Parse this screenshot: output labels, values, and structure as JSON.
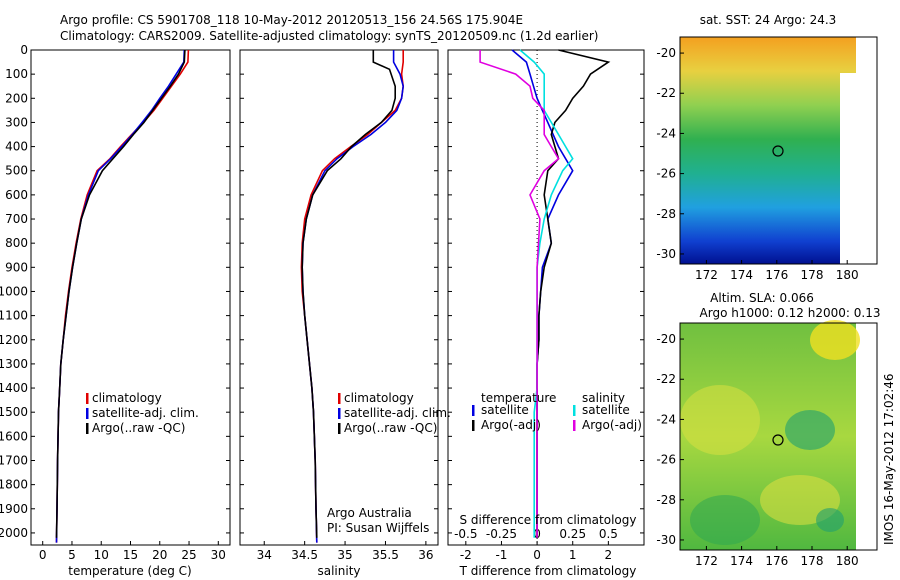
{
  "header": {
    "line1": "Argo profile: CS 5901708_118 10-May-2012 20120513_156 24.56S 175.904E",
    "line2": "Climatology: CARS2009. Satellite-adjusted climatology: synTS_20120509.nc (1.2d earlier)"
  },
  "depth_ticks": [
    "0",
    "100",
    "200",
    "300",
    "400",
    "500",
    "600",
    "700",
    "800",
    "900",
    "1000",
    "1100",
    "1200",
    "1300",
    "1400",
    "1500",
    "1600",
    "1700",
    "1800",
    "1900",
    "2000"
  ],
  "colors": {
    "climatology": "#e00000",
    "satellite": "#0000e0",
    "argo": "#000000",
    "s_satellite": "#00e0e0",
    "s_argo": "#e000e0"
  },
  "chart_data": [
    {
      "type": "line",
      "id": "temperature",
      "xlabel": "temperature (deg C)",
      "xticks": [
        "0",
        "5",
        "10",
        "15",
        "20",
        "25",
        "30"
      ],
      "xlim": [
        -2,
        32
      ],
      "ylim": [
        0,
        2050
      ],
      "legend": [
        "climatology",
        "satellite-adj. clim.",
        "Argo(..raw -QC)"
      ],
      "series": [
        {
          "name": "climatology",
          "color": "#e00000",
          "x": [
            24.9,
            24.8,
            23.5,
            22,
            20.5,
            19,
            17.2,
            15.2,
            13.3,
            11.5,
            9.3,
            7.6,
            6.5,
            5.7,
            5.0,
            4.4,
            3.9,
            3.5,
            3.1,
            2.9,
            2.7,
            2.55,
            2.45,
            2.35
          ],
          "y": [
            0,
            50,
            100,
            150,
            200,
            250,
            300,
            350,
            400,
            450,
            500,
            600,
            700,
            800,
            900,
            1000,
            1100,
            1200,
            1300,
            1400,
            1500,
            1700,
            1900,
            2040
          ]
        },
        {
          "name": "satellite-adj. clim.",
          "color": "#0000e0",
          "x": [
            24.2,
            24.1,
            22.8,
            21.5,
            20,
            18.6,
            17.0,
            15.3,
            13.5,
            11.6,
            9.5,
            7.8,
            6.6,
            5.8,
            5.1,
            4.5,
            4.0,
            3.5,
            3.1,
            2.9,
            2.7,
            2.55,
            2.45,
            2.35
          ],
          "y": [
            0,
            50,
            100,
            150,
            200,
            250,
            300,
            350,
            400,
            450,
            500,
            600,
            700,
            800,
            900,
            1000,
            1100,
            1200,
            1300,
            1400,
            1500,
            1700,
            1900,
            2040
          ]
        },
        {
          "name": "Argo(..raw -QC)",
          "color": "#000000",
          "x": [
            24.3,
            24.2,
            23.2,
            21.8,
            20.3,
            18.8,
            17.3,
            15.5,
            13.8,
            12.0,
            10.2,
            8.0,
            6.6,
            5.8,
            5.1,
            4.5,
            4.0,
            3.5,
            3.1,
            2.9,
            2.7,
            2.55,
            2.45,
            2.35
          ],
          "y": [
            0,
            50,
            100,
            150,
            200,
            250,
            300,
            350,
            400,
            450,
            500,
            600,
            700,
            800,
            900,
            1000,
            1100,
            1200,
            1300,
            1400,
            1500,
            1700,
            1900,
            2020
          ]
        }
      ]
    },
    {
      "type": "line",
      "id": "salinity",
      "xlabel": "salinity",
      "xticks": [
        "34",
        "34.5",
        "35",
        "35.5",
        "36"
      ],
      "xlim": [
        33.7,
        36.15
      ],
      "ylim": [
        0,
        2050
      ],
      "legend": [
        "climatology",
        "satellite-adj. clim.",
        "Argo(..raw -QC)"
      ],
      "note1": "Argo Australia",
      "note2": "PI: Susan Wijffels",
      "series": [
        {
          "name": "climatology",
          "color": "#e00000",
          "x": [
            35.72,
            35.72,
            35.7,
            35.72,
            35.7,
            35.62,
            35.45,
            35.28,
            35.07,
            34.87,
            34.72,
            34.58,
            34.5,
            34.47,
            34.46,
            34.47,
            34.5,
            34.53,
            34.56,
            34.59,
            34.61,
            34.63,
            34.64,
            34.65
          ],
          "y": [
            0,
            50,
            100,
            150,
            200,
            250,
            300,
            350,
            400,
            450,
            500,
            600,
            700,
            800,
            900,
            1000,
            1100,
            1200,
            1300,
            1400,
            1500,
            1700,
            1900,
            2040
          ]
        },
        {
          "name": "satellite-adj. clim.",
          "color": "#0000e0",
          "x": [
            35.6,
            35.6,
            35.68,
            35.72,
            35.7,
            35.64,
            35.5,
            35.32,
            35.1,
            34.9,
            34.75,
            34.6,
            34.52,
            34.48,
            34.47,
            34.48,
            34.5,
            34.53,
            34.56,
            34.59,
            34.61,
            34.63,
            34.64,
            34.65
          ],
          "y": [
            0,
            50,
            100,
            150,
            200,
            250,
            300,
            350,
            400,
            450,
            500,
            600,
            700,
            800,
            900,
            1000,
            1100,
            1200,
            1300,
            1400,
            1500,
            1700,
            1900,
            2040
          ]
        },
        {
          "name": "Argo(..raw -QC)",
          "color": "#000000",
          "x": [
            35.35,
            35.35,
            35.55,
            35.62,
            35.62,
            35.58,
            35.45,
            35.25,
            35.08,
            34.95,
            34.78,
            34.6,
            34.52,
            34.48,
            34.47,
            34.48,
            34.5,
            34.53,
            34.56,
            34.59,
            34.61,
            34.63,
            34.64,
            34.65
          ],
          "y": [
            0,
            50,
            80,
            150,
            200,
            250,
            300,
            350,
            400,
            450,
            500,
            600,
            700,
            800,
            900,
            1000,
            1100,
            1200,
            1300,
            1400,
            1500,
            1700,
            1900,
            2020
          ]
        }
      ]
    },
    {
      "type": "line",
      "id": "difference",
      "xlabel": "T difference from climatology",
      "xlabel_top": "S difference from climatology",
      "xticks": [
        "-2",
        "-1",
        "0",
        "1",
        "2"
      ],
      "xticks_top": [
        "-0.5",
        "-0.25",
        "0",
        "0.25",
        "0.5"
      ],
      "xlim": [
        -2.5,
        3.0
      ],
      "ylim": [
        0,
        2050
      ],
      "legend_left_title": "temperature",
      "legend_right_title": "salinity",
      "legend_left": [
        "satellite",
        "Argo(-adj)"
      ],
      "legend_right": [
        "satellite",
        "Argo(-adj)"
      ],
      "series": [
        {
          "name": "temperature satellite",
          "color": "#0000e0",
          "x": [
            -0.7,
            -0.3,
            -0.2,
            -0.1,
            0,
            0.15,
            0.3,
            0.45,
            0.6,
            0.8,
            1.0,
            0.6,
            0.3,
            0.4,
            0.15,
            0.1,
            0.05,
            0.05,
            0,
            0,
            0,
            0,
            0,
            0
          ],
          "y": [
            0,
            50,
            100,
            150,
            200,
            250,
            300,
            350,
            400,
            450,
            500,
            600,
            700,
            800,
            900,
            1000,
            1100,
            1200,
            1300,
            1400,
            1500,
            1700,
            1900,
            2020
          ]
        },
        {
          "name": "temperature Argo(-adj)",
          "color": "#000000",
          "x": [
            0.6,
            2.0,
            1.5,
            1.3,
            1.0,
            0.8,
            0.5,
            0.4,
            0.5,
            0.6,
            0.3,
            0.2,
            0.3,
            0.4,
            0.2,
            0.1,
            0.05,
            0.05,
            0,
            0,
            0,
            0,
            0,
            0
          ],
          "y": [
            0,
            50,
            100,
            150,
            200,
            250,
            300,
            350,
            400,
            450,
            500,
            600,
            700,
            800,
            900,
            1000,
            1100,
            1200,
            1300,
            1400,
            1500,
            1700,
            1900,
            2020
          ]
        },
        {
          "name": "salinity satellite",
          "color": "#00e0e0",
          "x": [
            -0.12,
            -0.02,
            0.05,
            0.05,
            0.05,
            0.05,
            0.1,
            0.15,
            0.2,
            0.25,
            0.18,
            0.1,
            0.05,
            0.02,
            0,
            0,
            0,
            0,
            0,
            0,
            -0.02,
            -0.02,
            -0.02,
            -0.02
          ],
          "y": [
            0,
            50,
            100,
            150,
            200,
            250,
            300,
            350,
            400,
            450,
            500,
            600,
            700,
            800,
            900,
            1000,
            1100,
            1200,
            1300,
            1400,
            1500,
            1700,
            1900,
            2020
          ]
        },
        {
          "name": "salinity Argo(-adj)",
          "color": "#e000e0",
          "x": [
            -0.4,
            -0.4,
            -0.15,
            -0.05,
            -0.03,
            0.05,
            0.05,
            0.05,
            0.1,
            0.15,
            0.05,
            -0.05,
            0.02,
            0.01,
            0,
            0,
            0,
            0,
            0,
            0,
            0,
            0,
            0,
            0
          ],
          "y": [
            0,
            50,
            100,
            150,
            200,
            250,
            300,
            350,
            400,
            450,
            500,
            600,
            700,
            800,
            900,
            1000,
            1100,
            1200,
            1300,
            1400,
            1500,
            1700,
            1900,
            2020
          ]
        }
      ]
    },
    {
      "type": "heatmap",
      "id": "sst_map",
      "title": "sat. SST: 24 Argo: 24.3",
      "xticks": [
        "172",
        "174",
        "176",
        "178",
        "180"
      ],
      "yticks": [
        "-20",
        "-22",
        "-24",
        "-26",
        "-28",
        "-30"
      ],
      "xlim": [
        170.5,
        180.5
      ],
      "ylim": [
        -30.5,
        -19.2
      ],
      "profile_location": [
        175.9,
        -24.56
      ]
    },
    {
      "type": "heatmap",
      "id": "sla_map",
      "title": "Altim. SLA: 0.066",
      "subtitle": "Argo h1000: 0.12 h2000: 0.13",
      "xticks": [
        "172",
        "174",
        "176",
        "178",
        "180"
      ],
      "yticks": [
        "-20",
        "-22",
        "-24",
        "-26",
        "-28",
        "-30"
      ],
      "xlim": [
        170.5,
        180.5
      ],
      "ylim": [
        -30.5,
        -19.2
      ],
      "profile_location": [
        175.9,
        -24.56
      ]
    }
  ],
  "footer_stamp": "IMOS 16-May-2012 17:02:46"
}
